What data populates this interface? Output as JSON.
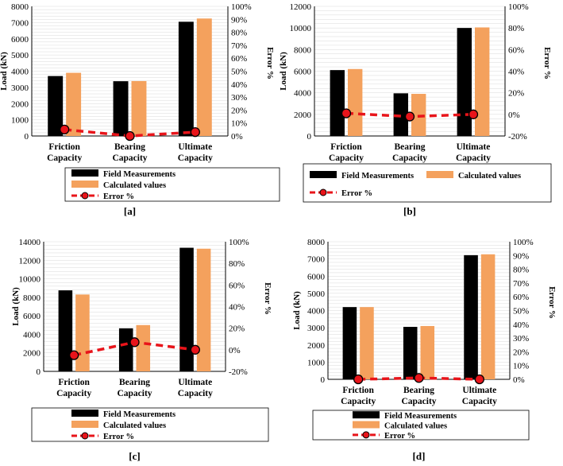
{
  "colors": {
    "field": "#000000",
    "calculated": "#f4a15d",
    "error_line": "#e8141a",
    "error_marker": "#e8141a",
    "grid": "#d9d9d9"
  },
  "chart_data": [
    {
      "type": "bar",
      "panel_label": "[a]",
      "categories": [
        [
          "Friction",
          "Capacity"
        ],
        [
          "Bearing",
          "Capacity"
        ],
        [
          "Ultimate",
          "Capacity"
        ]
      ],
      "series": [
        {
          "name": "Field Measurements",
          "values": [
            3700,
            3380,
            7050
          ]
        },
        {
          "name": "Calculated values",
          "values": [
            3900,
            3390,
            7250
          ]
        }
      ],
      "error_series": {
        "name": "Error %",
        "values": [
          5,
          0,
          3
        ]
      },
      "ylabel": "Load (kN)",
      "y2label": "Error %",
      "ylim": [
        0,
        8000
      ],
      "yticks": [
        "0",
        "1000",
        "2000",
        "3000",
        "4000",
        "5000",
        "6000",
        "7000",
        "8000"
      ],
      "y2lim": [
        0,
        100
      ],
      "y2ticks": [
        "0%",
        "10%",
        "20%",
        "30%",
        "40%",
        "50%",
        "60%",
        "70%",
        "80%",
        "90%",
        "100%"
      ],
      "legend": "bottom-stacked",
      "grid": true
    },
    {
      "type": "bar",
      "panel_label": "[b]",
      "categories": [
        [
          "Friction",
          "Capacity"
        ],
        [
          "Bearing",
          "Capacity"
        ],
        [
          "Ultimate",
          "Capacity"
        ]
      ],
      "series": [
        {
          "name": "Field Measurements",
          "values": [
            6100,
            3950,
            10000
          ]
        },
        {
          "name": "Calculated values",
          "values": [
            6200,
            3900,
            10050
          ]
        }
      ],
      "error_series": {
        "name": "Error %",
        "values": [
          1,
          -2,
          0
        ]
      },
      "ylabel": "Load (kN)",
      "y2label": "Error %",
      "ylim": [
        0,
        12000
      ],
      "yticks": [
        "0",
        "2000",
        "4000",
        "6000",
        "8000",
        "10000",
        "12000"
      ],
      "y2lim": [
        -20,
        100
      ],
      "y2ticks": [
        "-20%",
        "0%",
        "20%",
        "40%",
        "60%",
        "80%",
        "100%"
      ],
      "legend": "bottom-row",
      "grid": true
    },
    {
      "type": "bar",
      "panel_label": "[c]",
      "categories": [
        [
          "Friction",
          "Capacity"
        ],
        [
          "Bearing",
          "Capacity"
        ],
        [
          "Ultimate",
          "Capacity"
        ]
      ],
      "series": [
        {
          "name": "Field Measurements",
          "values": [
            8750,
            4650,
            13350
          ]
        },
        {
          "name": "Calculated values",
          "values": [
            8300,
            5000,
            13250
          ]
        }
      ],
      "error_series": {
        "name": "Error %",
        "values": [
          -5,
          7,
          0
        ]
      },
      "ylabel": "Load (kN)",
      "y2label": "Error %",
      "ylim": [
        0,
        14000
      ],
      "yticks": [
        "0",
        "2000",
        "4000",
        "6000",
        "8000",
        "10000",
        "12000",
        "14000"
      ],
      "y2lim": [
        -20,
        100
      ],
      "y2ticks": [
        "-20%",
        "0%",
        "20%",
        "40%",
        "60%",
        "80%",
        "100%"
      ],
      "legend": "bottom-stacked",
      "grid": true
    },
    {
      "type": "bar",
      "panel_label": "[d]",
      "categories": [
        [
          "Friction",
          "Capacity"
        ],
        [
          "Bearing",
          "Capacity"
        ],
        [
          "Ultimate",
          "Capacity"
        ]
      ],
      "series": [
        {
          "name": "Field Measurements",
          "values": [
            4200,
            3050,
            7220
          ]
        },
        {
          "name": "Calculated values",
          "values": [
            4200,
            3100,
            7270
          ]
        }
      ],
      "error_series": {
        "name": "Error %",
        "values": [
          0,
          1,
          0
        ]
      },
      "ylabel": "Load (kN)",
      "y2label": "Error %",
      "ylim": [
        0,
        8000
      ],
      "yticks": [
        "0",
        "1000",
        "2000",
        "3000",
        "4000",
        "5000",
        "6000",
        "7000",
        "8000"
      ],
      "y2lim": [
        0,
        100
      ],
      "y2ticks": [
        "0%",
        "10%",
        "20%",
        "30%",
        "40%",
        "50%",
        "60%",
        "70%",
        "80%",
        "90%",
        "100%"
      ],
      "legend": "bottom-stacked",
      "grid": true
    }
  ]
}
